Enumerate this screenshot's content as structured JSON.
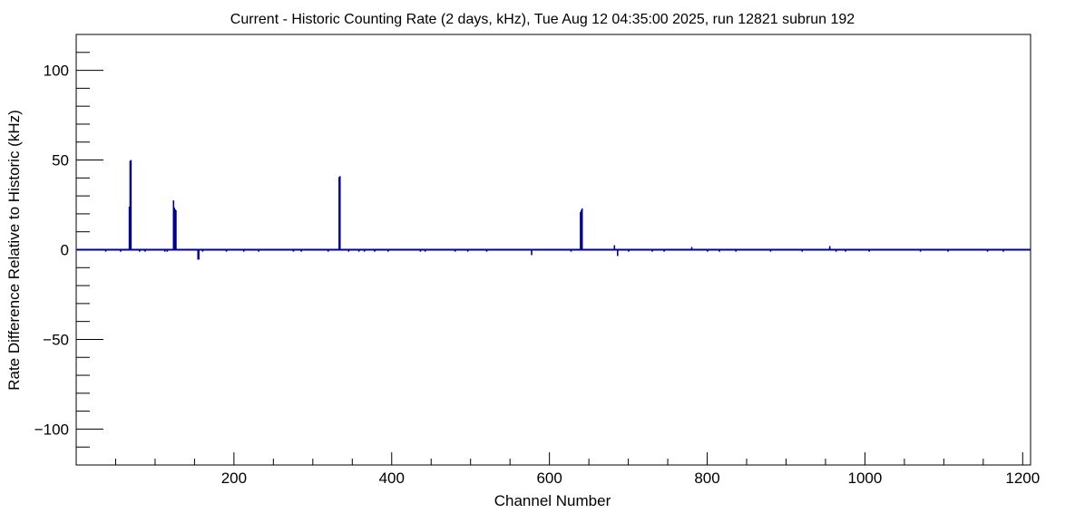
{
  "chart_data": {
    "type": "bar",
    "title": "Current - Historic Counting Rate (2 days, kHz), Tue Aug 12 04:35:00 2025, run 12821 subrun 192",
    "xlabel": "Channel Number",
    "ylabel": "Rate Difference Relative to Historic (kHz)",
    "xlim": [
      0,
      1210
    ],
    "ylim": [
      -120,
      120
    ],
    "x_ticks": [
      200,
      400,
      600,
      800,
      1000,
      1200
    ],
    "x_tick_labels": [
      "200",
      "400",
      "600",
      "800",
      "1000",
      "1200"
    ],
    "y_ticks": [
      -100,
      -50,
      0,
      50,
      100
    ],
    "y_tick_labels": [
      "−100",
      "−50",
      "0",
      "50",
      "100"
    ],
    "grid": false,
    "color": "#000099",
    "baseline": 0,
    "nonzero_bins": [
      {
        "x": 67,
        "y": 23.5
      },
      {
        "x": 68,
        "y": 49
      },
      {
        "x": 69,
        "y": 49.5
      },
      {
        "x": 123,
        "y": 27
      },
      {
        "x": 124,
        "y": 23
      },
      {
        "x": 125,
        "y": 22
      },
      {
        "x": 126,
        "y": 21.5
      },
      {
        "x": 154,
        "y": -5
      },
      {
        "x": 155,
        "y": -5
      },
      {
        "x": 333,
        "y": 40
      },
      {
        "x": 334,
        "y": 40.5
      },
      {
        "x": 577,
        "y": -2.5
      },
      {
        "x": 639,
        "y": 20.5
      },
      {
        "x": 640,
        "y": 21.5
      },
      {
        "x": 641,
        "y": 22.5
      },
      {
        "x": 682,
        "y": 2
      },
      {
        "x": 686,
        "y": -3
      },
      {
        "x": 780,
        "y": 1
      },
      {
        "x": 955,
        "y": 1.5
      },
      {
        "x": 37,
        "y": -0.6
      },
      {
        "x": 56,
        "y": -0.6
      },
      {
        "x": 80,
        "y": -0.6
      },
      {
        "x": 87,
        "y": -0.6
      },
      {
        "x": 112,
        "y": -0.6
      },
      {
        "x": 115,
        "y": -0.6
      },
      {
        "x": 160,
        "y": -0.6
      },
      {
        "x": 190,
        "y": -0.6
      },
      {
        "x": 212,
        "y": -0.6
      },
      {
        "x": 231,
        "y": -0.6
      },
      {
        "x": 275,
        "y": -0.6
      },
      {
        "x": 285,
        "y": -0.6
      },
      {
        "x": 319,
        "y": -0.6
      },
      {
        "x": 345,
        "y": -0.6
      },
      {
        "x": 358,
        "y": -0.6
      },
      {
        "x": 365,
        "y": -0.6
      },
      {
        "x": 378,
        "y": -0.6
      },
      {
        "x": 395,
        "y": -0.6
      },
      {
        "x": 436,
        "y": -0.6
      },
      {
        "x": 442,
        "y": -0.6
      },
      {
        "x": 480,
        "y": -0.6
      },
      {
        "x": 496,
        "y": -0.6
      },
      {
        "x": 520,
        "y": -0.6
      },
      {
        "x": 627,
        "y": -0.6
      },
      {
        "x": 700,
        "y": -0.6
      },
      {
        "x": 730,
        "y": -0.6
      },
      {
        "x": 745,
        "y": -0.6
      },
      {
        "x": 800,
        "y": -0.6
      },
      {
        "x": 815,
        "y": -0.6
      },
      {
        "x": 836,
        "y": -0.6
      },
      {
        "x": 880,
        "y": -0.6
      },
      {
        "x": 920,
        "y": -0.6
      },
      {
        "x": 963,
        "y": -0.6
      },
      {
        "x": 975,
        "y": -0.6
      },
      {
        "x": 1005,
        "y": -0.6
      },
      {
        "x": 1070,
        "y": -0.6
      },
      {
        "x": 1105,
        "y": -0.6
      },
      {
        "x": 1155,
        "y": -0.6
      },
      {
        "x": 1175,
        "y": -0.6
      }
    ]
  }
}
